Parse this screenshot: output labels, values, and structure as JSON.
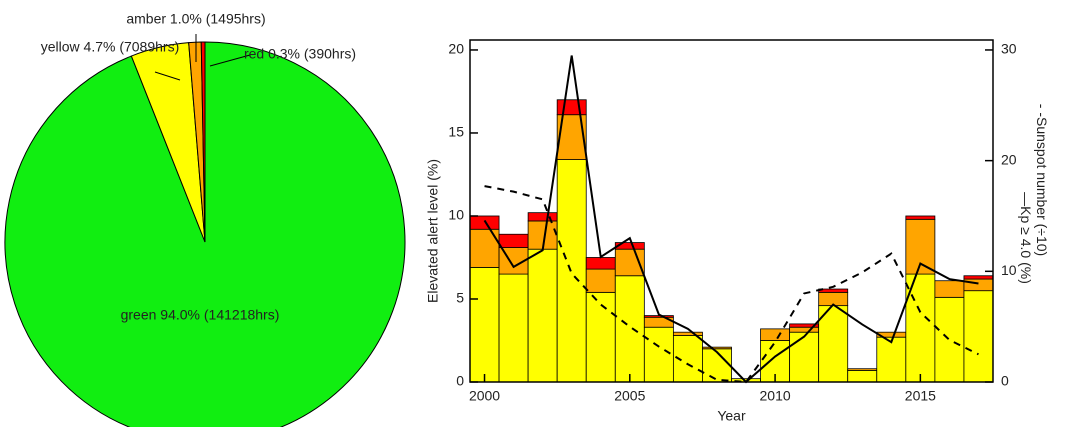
{
  "chart_data": [
    {
      "type": "pie",
      "values": [
        94.0,
        4.7,
        1.0,
        0.3
      ],
      "value_labels": [
        "green 94.0% (141218hrs)",
        "yellow 4.7% (7089hrs)",
        "amber 1.0% (1495hrs)",
        "red 0.3% (390hrs)"
      ],
      "colors": [
        "#11ee11",
        "#ffff00",
        "#ffa500",
        "#ff0000"
      ]
    },
    {
      "type": "bar",
      "x_label": "Year",
      "y_label": "Elevated alert level (%)",
      "x": [
        2000,
        2001,
        2002,
        2003,
        2004,
        2005,
        2006,
        2007,
        2008,
        2009,
        2010,
        2011,
        2012,
        2013,
        2014,
        2015,
        2016,
        2017
      ],
      "xlim": [
        1999.5,
        2017.5
      ],
      "xticks": [
        2000,
        2005,
        2010,
        2015
      ],
      "ylim": [
        0,
        20.6
      ],
      "yticks": [
        0,
        5,
        10,
        15,
        20
      ],
      "y2lim": [
        0,
        30.9
      ],
      "y2ticks": [
        0,
        10,
        20,
        30
      ],
      "series": [
        {
          "color": "#ffff00",
          "values": [
            6.9,
            6.5,
            8.0,
            13.4,
            5.4,
            6.4,
            3.3,
            2.8,
            2.0,
            0.2,
            2.5,
            3.0,
            4.6,
            0.7,
            2.7,
            6.5,
            5.1,
            5.5
          ]
        },
        {
          "color": "#ffa500",
          "values": [
            2.3,
            1.6,
            1.7,
            2.7,
            1.4,
            1.6,
            0.6,
            0.2,
            0.1,
            0,
            0.7,
            0.3,
            0.8,
            0.1,
            0.3,
            3.3,
            1.0,
            0.7
          ]
        },
        {
          "color": "#ff0000",
          "values": [
            0.8,
            0.8,
            0.5,
            0.9,
            0.7,
            0.4,
            0.1,
            0,
            0,
            0,
            0,
            0.2,
            0.2,
            0,
            0,
            0.2,
            0,
            0.2
          ]
        }
      ],
      "lines": [
        {
          "name": "Kp ≥ 4.0 (%)",
          "legend_symbol": "—",
          "color": "#000000",
          "dash": "none",
          "axis": "y2",
          "values": [
            14.6,
            10.4,
            11.9,
            29.5,
            11.3,
            13.0,
            6.1,
            4.8,
            2.7,
            0,
            2.3,
            4.1,
            7.0,
            5.2,
            3.6,
            10.7,
            9.3,
            8.9
          ]
        },
        {
          "name": "Sunspot number (÷10)",
          "legend_symbol": "- -",
          "color": "#000000",
          "dash": "7,6",
          "axis": "y2",
          "values": [
            17.7,
            17.2,
            16.5,
            9.8,
            7.0,
            5.0,
            3.2,
            1.6,
            0.2,
            0,
            3.6,
            8.0,
            8.6,
            9.9,
            11.6,
            6.3,
            3.8,
            2.5
          ]
        }
      ]
    }
  ]
}
